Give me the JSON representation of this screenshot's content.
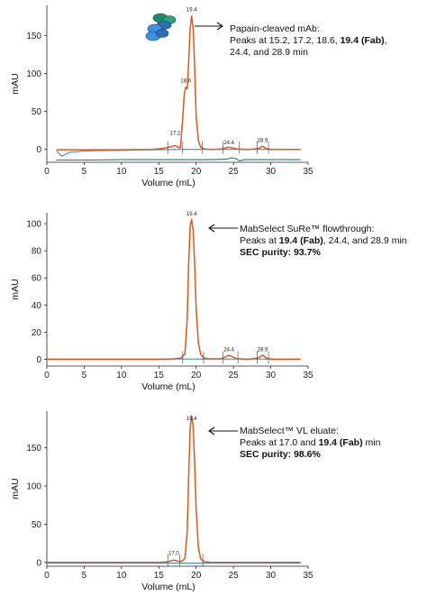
{
  "chart_data": [
    {
      "type": "line",
      "xlabel": "Volume (mL)",
      "ylabel": "mAU",
      "xlim": [
        0,
        35
      ],
      "ylim": [
        -17,
        190
      ],
      "xticks": [
        0,
        5,
        10,
        15,
        20,
        25,
        30,
        35
      ],
      "yticks": [
        0,
        50,
        100,
        150
      ],
      "annotation_lines": [
        [
          {
            "t": "Papain-cleaved mAb:",
            "b": false
          }
        ],
        [
          {
            "t": "Peaks at 15.2, 17.2, 18.6, ",
            "b": false
          },
          {
            "t": "19.4 (Fab)",
            "b": true
          },
          {
            "t": ",",
            "b": false
          }
        ],
        [
          {
            "t": "24.4, and 28.9 min",
            "b": false
          }
        ]
      ],
      "peak_labels": [
        {
          "x": 19.4,
          "y": 182,
          "text": "19.4"
        },
        {
          "x": 18.6,
          "y": 88,
          "text": "18.6"
        },
        {
          "x": 17.2,
          "y": 19,
          "text": "17.2"
        },
        {
          "x": 24.4,
          "y": 7,
          "text": "24.4"
        },
        {
          "x": 28.9,
          "y": 10,
          "text": "28.9"
        }
      ],
      "integration_markers": [
        16.2,
        18.2,
        20.8,
        23.6,
        25.8,
        28.2,
        29.7
      ],
      "series": [
        {
          "color": "#e0561c",
          "points": [
            [
              1.3,
              0
            ],
            [
              1.35,
              -0.5
            ],
            [
              5,
              -0.5
            ],
            [
              10,
              -0.5
            ],
            [
              14,
              0
            ],
            [
              15.2,
              1
            ],
            [
              16,
              2
            ],
            [
              16.8,
              4
            ],
            [
              17.2,
              5
            ],
            [
              17.6,
              3
            ],
            [
              17.9,
              2
            ],
            [
              18.2,
              40
            ],
            [
              18.4,
              72
            ],
            [
              18.6,
              82
            ],
            [
              18.8,
              80
            ],
            [
              19,
              115
            ],
            [
              19.2,
              160
            ],
            [
              19.4,
              176
            ],
            [
              19.6,
              160
            ],
            [
              19.8,
              110
            ],
            [
              20,
              45
            ],
            [
              20.3,
              12
            ],
            [
              20.6,
              3
            ],
            [
              21.2,
              0.5
            ],
            [
              22,
              0
            ],
            [
              23.5,
              0.5
            ],
            [
              24,
              2
            ],
            [
              24.4,
              3
            ],
            [
              24.8,
              2
            ],
            [
              25.5,
              0.5
            ],
            [
              27,
              0
            ],
            [
              28.3,
              1
            ],
            [
              28.9,
              4
            ],
            [
              29.4,
              1
            ],
            [
              30,
              0
            ],
            [
              34,
              0
            ]
          ]
        },
        {
          "color": "#3a8fd6",
          "points": [
            [
              1.3,
              -2
            ],
            [
              2,
              -9
            ],
            [
              3,
              -4
            ],
            [
              5,
              -2
            ],
            [
              10,
              -1
            ],
            [
              15,
              -0.5
            ],
            [
              18,
              0
            ],
            [
              34,
              0
            ]
          ]
        },
        {
          "color": "#1e7a6e",
          "points": [
            [
              1.3,
              -14
            ],
            [
              5,
              -14
            ],
            [
              10,
              -13.5
            ],
            [
              22,
              -13.5
            ],
            [
              24,
              -13
            ],
            [
              24.8,
              -11
            ],
            [
              25.3,
              -12
            ],
            [
              25.8,
              -15
            ],
            [
              26.5,
              -13.5
            ],
            [
              34,
              -13.5
            ]
          ]
        }
      ]
    },
    {
      "type": "line",
      "xlabel": "Volume (mL)",
      "ylabel": "mAU",
      "xlim": [
        0,
        35
      ],
      "ylim": [
        -5,
        108
      ],
      "xticks": [
        0,
        5,
        10,
        15,
        20,
        25,
        30,
        35
      ],
      "yticks": [
        0,
        20,
        40,
        60,
        80,
        100
      ],
      "annotation_lines": [
        [
          {
            "t": "MabSelect SuRe™ flowthrough:",
            "b": false
          }
        ],
        [
          {
            "t": "Peaks at ",
            "b": false
          },
          {
            "t": "19.4 (Fab)",
            "b": true
          },
          {
            "t": ", 24.4, and 28.9 min",
            "b": false
          }
        ],
        [
          {
            "t": "SEC purity: 93.7%",
            "b": true
          }
        ]
      ],
      "peak_labels": [
        {
          "x": 19.4,
          "y": 106,
          "text": "19.4"
        },
        {
          "x": 24.4,
          "y": 6,
          "text": "24.4"
        },
        {
          "x": 28.9,
          "y": 6,
          "text": "28.9"
        }
      ],
      "integration_markers": [
        18.2,
        21.0,
        23.6,
        25.6,
        28.2,
        29.7
      ],
      "series": [
        {
          "color": "#e0561c",
          "points": [
            [
              0,
              0
            ],
            [
              10,
              0
            ],
            [
              15,
              0
            ],
            [
              17,
              0.3
            ],
            [
              18,
              1
            ],
            [
              18.5,
              4
            ],
            [
              18.8,
              30
            ],
            [
              19,
              70
            ],
            [
              19.2,
              98
            ],
            [
              19.4,
              103
            ],
            [
              19.6,
              95
            ],
            [
              19.8,
              70
            ],
            [
              20,
              38
            ],
            [
              20.3,
              12
            ],
            [
              20.6,
              4
            ],
            [
              21,
              1
            ],
            [
              22,
              0.3
            ],
            [
              23.5,
              0.5
            ],
            [
              24,
              2
            ],
            [
              24.4,
              3
            ],
            [
              24.8,
              2
            ],
            [
              25.4,
              0.5
            ],
            [
              27,
              0
            ],
            [
              28.3,
              1
            ],
            [
              28.9,
              3
            ],
            [
              29.4,
              1
            ],
            [
              30,
              0
            ],
            [
              34,
              0
            ]
          ]
        },
        {
          "color": "#3a8fd6",
          "points": [
            [
              0,
              0.2
            ],
            [
              34,
              0.2
            ]
          ]
        }
      ]
    },
    {
      "type": "line",
      "xlabel": "Volume (mL)",
      "ylabel": "mAU",
      "xlim": [
        0,
        35
      ],
      "ylim": [
        -5,
        198
      ],
      "xticks": [
        0,
        5,
        10,
        15,
        20,
        25,
        30,
        35
      ],
      "yticks": [
        0,
        50,
        100,
        150
      ],
      "annotation_lines": [
        [
          {
            "t": "MabSelect™ VL eluate:",
            "b": false
          }
        ],
        [
          {
            "t": "Peaks at 17.0 and ",
            "b": false
          },
          {
            "t": "19.4 (Fab)",
            "b": true
          },
          {
            "t": " min",
            "b": false
          }
        ],
        [
          {
            "t": "SEC purity: 98.6%",
            "b": true
          }
        ]
      ],
      "peak_labels": [
        {
          "x": 19.4,
          "y": 186,
          "text": "19.4"
        },
        {
          "x": 17.0,
          "y": 10,
          "text": "17.0"
        }
      ],
      "integration_markers": [
        16.2,
        17.8,
        20.9
      ],
      "series": [
        {
          "color": "#e0561c",
          "points": [
            [
              0,
              0
            ],
            [
              10,
              0
            ],
            [
              15,
              0
            ],
            [
              16,
              0.5
            ],
            [
              16.6,
              2
            ],
            [
              17,
              3
            ],
            [
              17.4,
              2
            ],
            [
              18,
              1
            ],
            [
              18.5,
              5
            ],
            [
              18.8,
              40
            ],
            [
              19,
              110
            ],
            [
              19.2,
              175
            ],
            [
              19.4,
              192
            ],
            [
              19.6,
              178
            ],
            [
              19.8,
              130
            ],
            [
              20,
              70
            ],
            [
              20.3,
              20
            ],
            [
              20.6,
              5
            ],
            [
              21,
              1
            ],
            [
              22,
              0
            ],
            [
              34,
              0
            ]
          ]
        },
        {
          "color": "#3a8fd6",
          "points": [
            [
              0,
              -1
            ],
            [
              34,
              -1
            ]
          ]
        }
      ]
    }
  ]
}
